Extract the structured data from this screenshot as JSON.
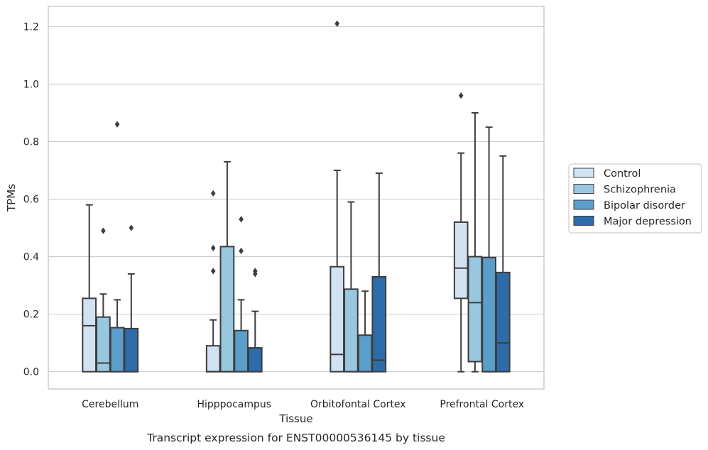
{
  "chart_data": {
    "type": "box",
    "xlabel": "Tissue",
    "ylabel": "TPMs",
    "caption": "Transcript expression for ENST00000536145 by tissue",
    "ylim": [
      -0.06,
      1.27
    ],
    "yticks": [
      0.0,
      0.2,
      0.4,
      0.6,
      0.8,
      1.0,
      1.2
    ],
    "ytick_labels": [
      "0.0",
      "0.2",
      "0.4",
      "0.6",
      "0.8",
      "1.0",
      "1.2"
    ],
    "grid": "horizontal",
    "legend_position": "right",
    "categories": [
      "Cerebellum",
      "Hipppocampus",
      "Orbitofontal Cortex",
      "Prefrontal Cortex"
    ],
    "series": [
      {
        "name": "Control",
        "color": "#d1e2f2",
        "boxes": [
          {
            "whisker_low": 0.0,
            "q1": 0.0,
            "median": 0.16,
            "q3": 0.255,
            "whisker_high": 0.58,
            "outliers": []
          },
          {
            "whisker_low": 0.0,
            "q1": 0.0,
            "median": 0.0,
            "q3": 0.09,
            "whisker_high": 0.18,
            "outliers": [
              0.35,
              0.43,
              0.62
            ]
          },
          {
            "whisker_low": 0.0,
            "q1": 0.0,
            "median": 0.06,
            "q3": 0.365,
            "whisker_high": 0.7,
            "outliers": [
              1.21
            ]
          },
          {
            "whisker_low": 0.0,
            "q1": 0.255,
            "median": 0.36,
            "q3": 0.52,
            "whisker_high": 0.76,
            "outliers": [
              0.96
            ]
          }
        ]
      },
      {
        "name": "Schizophrenia",
        "color": "#9ac7e0",
        "boxes": [
          {
            "whisker_low": 0.0,
            "q1": 0.0,
            "median": 0.03,
            "q3": 0.19,
            "whisker_high": 0.27,
            "outliers": [
              0.49
            ]
          },
          {
            "whisker_low": 0.0,
            "q1": 0.0,
            "median": 0.0,
            "q3": 0.435,
            "whisker_high": 0.73,
            "outliers": []
          },
          {
            "whisker_low": 0.0,
            "q1": 0.0,
            "median": 0.0,
            "q3": 0.287,
            "whisker_high": 0.59,
            "outliers": []
          },
          {
            "whisker_low": 0.0,
            "q1": 0.035,
            "median": 0.24,
            "q3": 0.4,
            "whisker_high": 0.9,
            "outliers": []
          }
        ]
      },
      {
        "name": "Bipolar disorder",
        "color": "#5a9ec9",
        "boxes": [
          {
            "whisker_low": 0.0,
            "q1": 0.0,
            "median": 0.0,
            "q3": 0.153,
            "whisker_high": 0.25,
            "outliers": [
              0.86
            ]
          },
          {
            "whisker_low": 0.0,
            "q1": 0.0,
            "median": 0.0,
            "q3": 0.143,
            "whisker_high": 0.25,
            "outliers": [
              0.42,
              0.53
            ]
          },
          {
            "whisker_low": 0.0,
            "q1": 0.0,
            "median": 0.0,
            "q3": 0.127,
            "whisker_high": 0.28,
            "outliers": []
          },
          {
            "whisker_low": 0.0,
            "q1": 0.0,
            "median": 0.0,
            "q3": 0.397,
            "whisker_high": 0.85,
            "outliers": []
          }
        ]
      },
      {
        "name": "Major depression",
        "color": "#2d6ca8",
        "boxes": [
          {
            "whisker_low": 0.0,
            "q1": 0.0,
            "median": 0.0,
            "q3": 0.15,
            "whisker_high": 0.34,
            "outliers": [
              0.5
            ]
          },
          {
            "whisker_low": 0.0,
            "q1": 0.0,
            "median": 0.0,
            "q3": 0.083,
            "whisker_high": 0.21,
            "outliers": [
              0.34,
              0.35
            ]
          },
          {
            "whisker_low": 0.0,
            "q1": 0.0,
            "median": 0.04,
            "q3": 0.33,
            "whisker_high": 0.69,
            "outliers": []
          },
          {
            "whisker_low": 0.0,
            "q1": 0.0,
            "median": 0.1,
            "q3": 0.345,
            "whisker_high": 0.75,
            "outliers": []
          }
        ]
      }
    ]
  }
}
